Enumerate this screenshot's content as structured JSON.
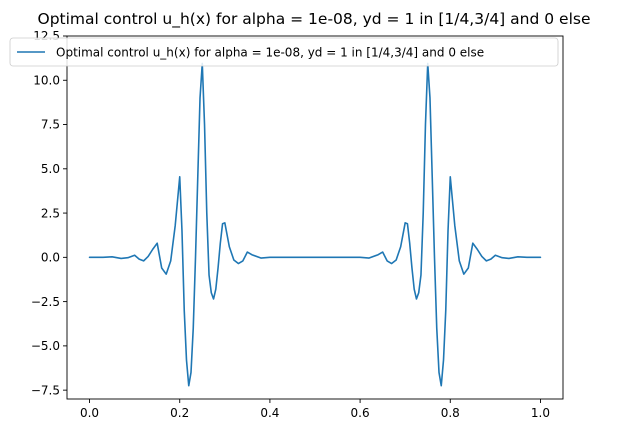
{
  "chart_data": {
    "type": "line",
    "title": "Optimal control u_h(x) for alpha = 1e-08, yd = 1 in [1/4,3/4] and 0 else",
    "xlabel": "",
    "ylabel": "",
    "xlim": [
      -0.05,
      1.05
    ],
    "ylim": [
      -8.0,
      12.5
    ],
    "x_ticks": [
      0.0,
      0.2,
      0.4,
      0.6,
      0.8,
      1.0
    ],
    "x_tick_labels": [
      "0.0",
      "0.2",
      "0.4",
      "0.6",
      "0.8",
      "1.0"
    ],
    "y_ticks": [
      -7.5,
      -5.0,
      -2.5,
      0.0,
      2.5,
      5.0,
      7.5,
      10.0,
      12.5
    ],
    "y_tick_labels": [
      "−7.5",
      "−5.0",
      "−2.5",
      "0.0",
      "2.5",
      "5.0",
      "7.5",
      "10.0",
      "12.5"
    ],
    "grid": false,
    "legend_position": "top-right",
    "series": [
      {
        "name": "Optimal control u_h(x) for alpha = 1e-08, yd = 1 in [1/4,3/4] and 0 else",
        "color": "#1f77b4",
        "x": [
          0.0,
          0.03,
          0.05,
          0.07,
          0.085,
          0.1,
          0.11,
          0.12,
          0.13,
          0.14,
          0.15,
          0.16,
          0.17,
          0.18,
          0.19,
          0.2,
          0.205,
          0.21,
          0.215,
          0.22,
          0.225,
          0.23,
          0.235,
          0.24,
          0.245,
          0.25,
          0.255,
          0.26,
          0.265,
          0.27,
          0.275,
          0.28,
          0.285,
          0.29,
          0.295,
          0.3,
          0.31,
          0.32,
          0.33,
          0.34,
          0.35,
          0.36,
          0.38,
          0.4,
          0.45,
          0.5,
          0.55,
          0.6,
          0.62,
          0.64,
          0.65,
          0.66,
          0.67,
          0.68,
          0.69,
          0.7,
          0.705,
          0.71,
          0.715,
          0.72,
          0.725,
          0.73,
          0.735,
          0.74,
          0.745,
          0.75,
          0.755,
          0.76,
          0.765,
          0.77,
          0.775,
          0.78,
          0.785,
          0.79,
          0.795,
          0.8,
          0.81,
          0.82,
          0.83,
          0.84,
          0.85,
          0.86,
          0.87,
          0.88,
          0.89,
          0.9,
          0.915,
          0.93,
          0.95,
          0.97,
          1.0
        ],
        "y": [
          0.0,
          0.0,
          0.03,
          -0.06,
          -0.02,
          0.12,
          -0.1,
          -0.2,
          0.05,
          0.45,
          0.8,
          -0.6,
          -0.95,
          -0.2,
          1.8,
          4.55,
          1.5,
          -3.0,
          -5.8,
          -7.25,
          -6.5,
          -4.0,
          0.0,
          4.5,
          9.0,
          10.95,
          7.5,
          2.5,
          -1.0,
          -2.0,
          -2.35,
          -1.8,
          -0.6,
          0.8,
          1.9,
          1.95,
          0.6,
          -0.15,
          -0.35,
          -0.2,
          0.3,
          0.15,
          -0.04,
          0.0,
          0.0,
          0.0,
          0.0,
          0.0,
          -0.04,
          0.15,
          0.3,
          -0.2,
          -0.35,
          -0.15,
          0.6,
          1.95,
          1.9,
          0.8,
          -0.6,
          -1.8,
          -2.35,
          -2.0,
          -1.0,
          2.5,
          7.5,
          10.95,
          9.0,
          4.5,
          0.0,
          -4.0,
          -6.5,
          -7.25,
          -5.8,
          -3.0,
          1.5,
          4.55,
          1.8,
          -0.2,
          -0.95,
          -0.6,
          0.8,
          0.45,
          0.05,
          -0.2,
          -0.1,
          0.12,
          -0.02,
          -0.06,
          0.03,
          0.0,
          0.0
        ]
      }
    ]
  }
}
